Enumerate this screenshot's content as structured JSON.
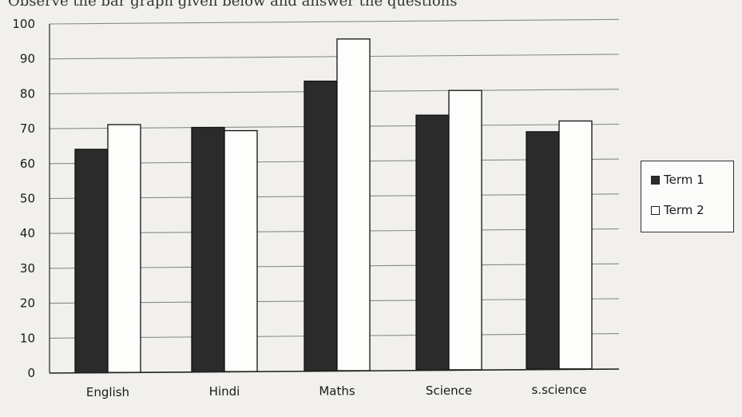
{
  "header_fragment": "Observe the bar graph given below and answer the questions",
  "chart_data": {
    "type": "bar",
    "categories": [
      "English",
      "Hindi",
      "Maths",
      "Science",
      "s.science"
    ],
    "series": [
      {
        "name": "Term 1",
        "values": [
          64,
          70,
          83,
          73,
          68
        ],
        "color": "#2b2b2b"
      },
      {
        "name": "Term 2",
        "values": [
          71,
          69,
          95,
          80,
          71
        ],
        "color": "#fdfdfb"
      }
    ],
    "yticks": [
      0,
      10,
      20,
      30,
      40,
      50,
      60,
      70,
      80,
      90,
      100
    ],
    "ylim": [
      0,
      100
    ],
    "grid": true,
    "legend_position": "right"
  }
}
